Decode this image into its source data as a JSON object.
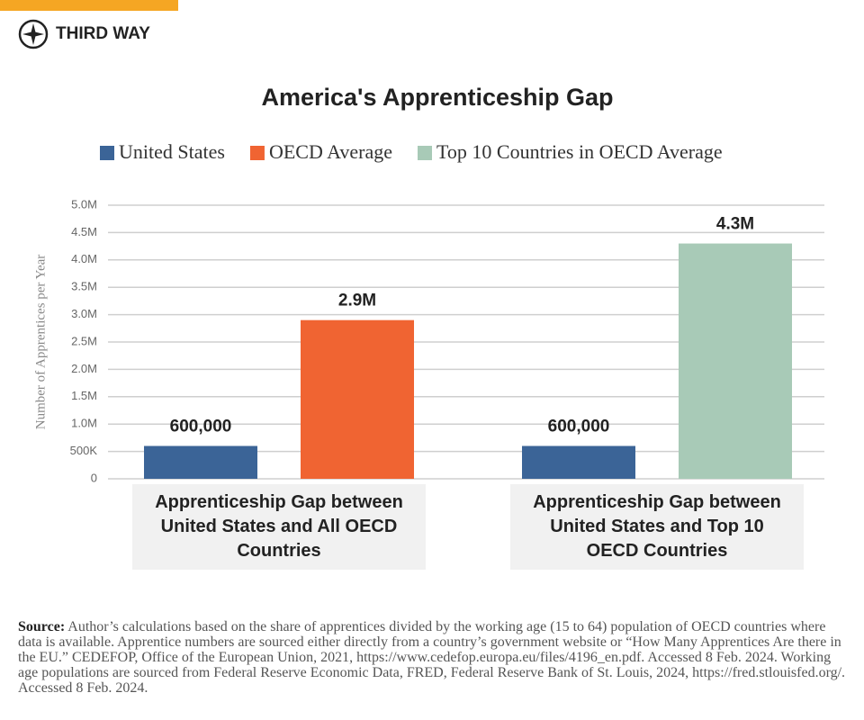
{
  "brand": "THIRD WAY",
  "chart_data": {
    "type": "bar",
    "title": "America's Apprenticeship Gap",
    "y_label": "Number of Apprentices per Year",
    "categories": [
      "Apprenticeship Gap between United States and All OECD Countries",
      "Apprenticeship Gap between United States and Top 10 OECD Countries"
    ],
    "series": [
      {
        "name": "United States",
        "color": "#3b6497",
        "values": [
          600000,
          600000
        ],
        "value_labels": [
          "600,000",
          "600,000"
        ]
      },
      {
        "name": "OECD Average",
        "color": "#f06432",
        "values": [
          2900000,
          null
        ],
        "value_labels": [
          "2.9M",
          null
        ]
      },
      {
        "name": "Top 10 Countries in OECD Average",
        "color": "#a8cab7",
        "values": [
          null,
          4300000
        ],
        "value_labels": [
          null,
          "4.3M"
        ]
      }
    ],
    "ylim": [
      0,
      5000000
    ],
    "yticks": [
      0,
      {
        "value": 500000,
        "label": "500K"
      },
      {
        "value": 1000000,
        "label": "1.0M"
      },
      {
        "value": 1500000,
        "label": "1.5M"
      },
      {
        "value": 2000000,
        "label": "2.0M"
      },
      {
        "value": 2500000,
        "label": "2.5M"
      },
      {
        "value": 3000000,
        "label": "3.0M"
      },
      {
        "value": 3500000,
        "label": "3.5M"
      },
      {
        "value": 4000000,
        "label": "4.0M"
      },
      {
        "value": 4500000,
        "label": "4.5M"
      },
      {
        "value": 5000000,
        "label": "5.0M"
      }
    ],
    "grid": true
  },
  "source": {
    "label": "Source:",
    "text": "Author’s calculations based on the share of apprentices divided by the working age (15 to 64) population of OECD countries where data is available. Apprentice numbers are sourced either directly from a country’s government website or “How Many Apprentices Are there in the EU.” CEDEFOP, Office of the European Union, 2021, https://www.cedefop.europa.eu/files/4196_en.pdf. Accessed 8 Feb. 2024. Working age populations are sourced from Federal Reserve Economic Data, FRED, Federal Reserve Bank of St. Louis, 2024, https://fred.stlouisfed.org/. Accessed 8 Feb. 2024."
  }
}
